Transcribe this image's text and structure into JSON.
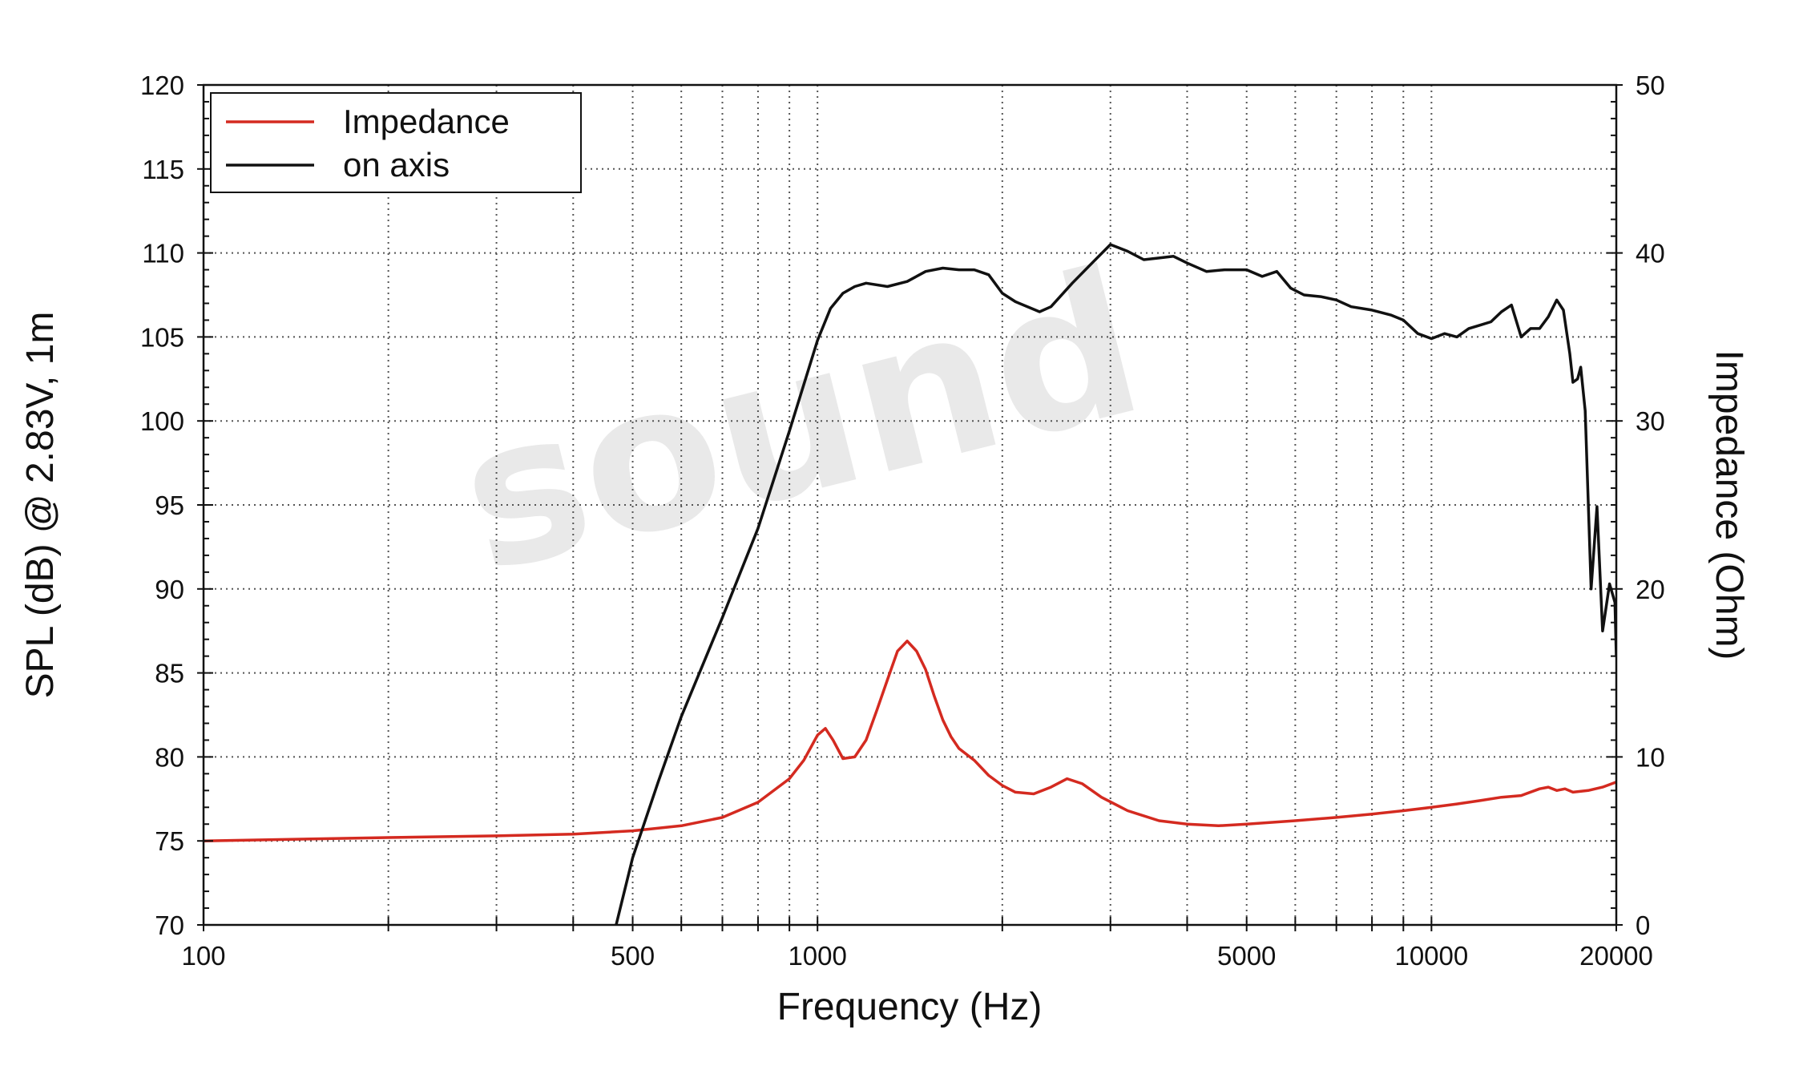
{
  "chart_data": {
    "type": "line",
    "watermark": "sound",
    "xlabel": "Frequency (Hz)",
    "ylabel": "SPL (dB) @ 2.83V, 1m",
    "y2label": "Impedance (Ohm)",
    "x_scale": "log",
    "xlim": [
      100,
      20000
    ],
    "ylim": [
      70,
      120
    ],
    "y2lim": [
      0,
      50
    ],
    "grid": true,
    "legend_position": "top-left",
    "x_ticks": [
      100,
      500,
      1000,
      5000,
      10000,
      20000
    ],
    "x_tick_labels": [
      "100",
      "500",
      "1000",
      "5000",
      "10000",
      "20000"
    ],
    "y_ticks": [
      70,
      75,
      80,
      85,
      90,
      95,
      100,
      105,
      110,
      115,
      120
    ],
    "y_tick_labels": [
      "70",
      "75",
      "80",
      "85",
      "90",
      "95",
      "100",
      "105",
      "110",
      "115",
      "120"
    ],
    "y2_ticks": [
      0,
      10,
      20,
      30,
      40,
      50
    ],
    "y2_tick_labels": [
      "0",
      "10",
      "20",
      "30",
      "40",
      "50"
    ],
    "series": [
      {
        "name": "Impedance",
        "color": "#d42a20",
        "axis": "right",
        "points": [
          [
            100,
            5.0
          ],
          [
            200,
            5.2
          ],
          [
            300,
            5.3
          ],
          [
            400,
            5.4
          ],
          [
            500,
            5.6
          ],
          [
            600,
            5.9
          ],
          [
            700,
            6.4
          ],
          [
            800,
            7.3
          ],
          [
            900,
            8.7
          ],
          [
            950,
            9.8
          ],
          [
            1000,
            11.3
          ],
          [
            1030,
            11.7
          ],
          [
            1060,
            11.0
          ],
          [
            1100,
            9.9
          ],
          [
            1150,
            10.0
          ],
          [
            1200,
            11.0
          ],
          [
            1250,
            12.8
          ],
          [
            1300,
            14.6
          ],
          [
            1350,
            16.3
          ],
          [
            1400,
            16.9
          ],
          [
            1450,
            16.3
          ],
          [
            1500,
            15.2
          ],
          [
            1550,
            13.6
          ],
          [
            1600,
            12.2
          ],
          [
            1650,
            11.2
          ],
          [
            1700,
            10.5
          ],
          [
            1800,
            9.8
          ],
          [
            1900,
            8.9
          ],
          [
            2000,
            8.3
          ],
          [
            2100,
            7.9
          ],
          [
            2250,
            7.8
          ],
          [
            2400,
            8.2
          ],
          [
            2550,
            8.7
          ],
          [
            2700,
            8.4
          ],
          [
            2900,
            7.6
          ],
          [
            3200,
            6.8
          ],
          [
            3600,
            6.2
          ],
          [
            4000,
            6.0
          ],
          [
            4500,
            5.9
          ],
          [
            5000,
            6.0
          ],
          [
            6000,
            6.2
          ],
          [
            7000,
            6.4
          ],
          [
            8000,
            6.6
          ],
          [
            9000,
            6.8
          ],
          [
            10000,
            7.0
          ],
          [
            11000,
            7.2
          ],
          [
            12000,
            7.4
          ],
          [
            13000,
            7.6
          ],
          [
            14000,
            7.7
          ],
          [
            15000,
            8.1
          ],
          [
            15500,
            8.2
          ],
          [
            16000,
            8.0
          ],
          [
            16500,
            8.1
          ],
          [
            17000,
            7.9
          ],
          [
            18000,
            8.0
          ],
          [
            19000,
            8.2
          ],
          [
            20000,
            8.5
          ]
        ]
      },
      {
        "name": "on axis",
        "color": "#111111",
        "axis": "left",
        "points": [
          [
            470,
            70.0
          ],
          [
            500,
            74.0
          ],
          [
            550,
            78.5
          ],
          [
            600,
            82.4
          ],
          [
            700,
            88.3
          ],
          [
            800,
            93.6
          ],
          [
            900,
            99.4
          ],
          [
            1000,
            104.8
          ],
          [
            1050,
            106.7
          ],
          [
            1100,
            107.6
          ],
          [
            1150,
            108.0
          ],
          [
            1200,
            108.2
          ],
          [
            1300,
            108.0
          ],
          [
            1400,
            108.3
          ],
          [
            1500,
            108.9
          ],
          [
            1600,
            109.1
          ],
          [
            1700,
            109.0
          ],
          [
            1800,
            109.0
          ],
          [
            1900,
            108.7
          ],
          [
            2000,
            107.6
          ],
          [
            2100,
            107.1
          ],
          [
            2300,
            106.5
          ],
          [
            2400,
            106.8
          ],
          [
            2600,
            108.2
          ],
          [
            2800,
            109.4
          ],
          [
            3000,
            110.5
          ],
          [
            3200,
            110.1
          ],
          [
            3400,
            109.6
          ],
          [
            3600,
            109.7
          ],
          [
            3800,
            109.8
          ],
          [
            4000,
            109.4
          ],
          [
            4300,
            108.9
          ],
          [
            4600,
            109.0
          ],
          [
            5000,
            109.0
          ],
          [
            5300,
            108.6
          ],
          [
            5600,
            108.9
          ],
          [
            5900,
            107.9
          ],
          [
            6200,
            107.5
          ],
          [
            6600,
            107.4
          ],
          [
            7000,
            107.2
          ],
          [
            7400,
            106.8
          ],
          [
            8000,
            106.6
          ],
          [
            8600,
            106.3
          ],
          [
            9000,
            106.0
          ],
          [
            9500,
            105.2
          ],
          [
            10000,
            104.9
          ],
          [
            10500,
            105.2
          ],
          [
            11000,
            105.0
          ],
          [
            11500,
            105.5
          ],
          [
            12000,
            105.7
          ],
          [
            12500,
            105.9
          ],
          [
            13000,
            106.5
          ],
          [
            13500,
            106.9
          ],
          [
            14000,
            105.0
          ],
          [
            14500,
            105.5
          ],
          [
            15000,
            105.5
          ],
          [
            15500,
            106.2
          ],
          [
            16000,
            107.2
          ],
          [
            16400,
            106.6
          ],
          [
            16800,
            104.0
          ],
          [
            17000,
            102.3
          ],
          [
            17300,
            102.5
          ],
          [
            17500,
            103.2
          ],
          [
            17800,
            100.6
          ],
          [
            18200,
            90.0
          ],
          [
            18600,
            94.9
          ],
          [
            19000,
            87.5
          ],
          [
            19500,
            90.3
          ],
          [
            19900,
            89.2
          ],
          [
            20000,
            86.0
          ]
        ]
      }
    ]
  }
}
